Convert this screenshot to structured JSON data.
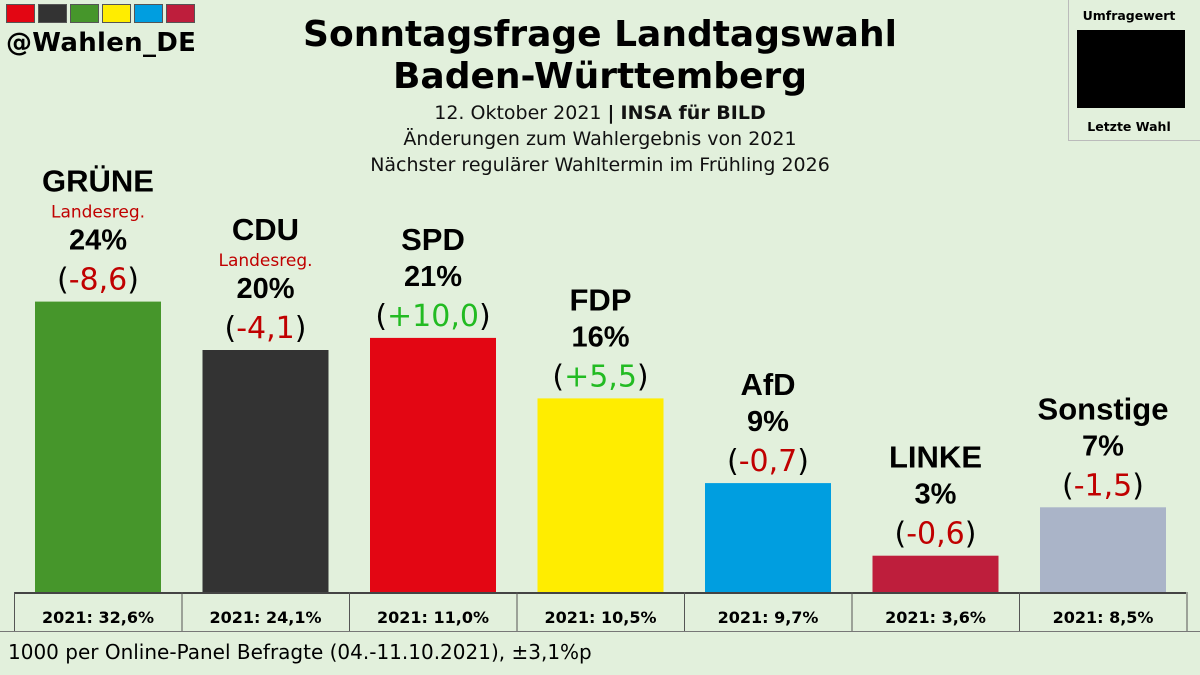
{
  "header": {
    "handle": "@Wahlen_DE",
    "title_line1": "Sonntagsfrage Landtagswahl",
    "title_line2": "Baden-Württemberg",
    "date": "12. Oktober 2021",
    "separator": "|",
    "pollster": "INSA für BILD",
    "changes_note": "Änderungen zum Wahlergebnis von 2021",
    "next_election": "Nächster regulärer Wahltermin im Frühling 2026",
    "brand_colors": [
      "#e30613",
      "#333333",
      "#46962b",
      "#ffed00",
      "#009ee0",
      "#be1e3c"
    ]
  },
  "legend": {
    "top_label": "Umfragewert",
    "bottom_label": "Letzte Wahl"
  },
  "footer": {
    "text": "1000 per Online-Panel Befragte (04.-11.10.2021), ±3,1%p"
  },
  "chart_data": {
    "type": "bar",
    "ylim": [
      0,
      30
    ],
    "categories": [
      "GRÜNE",
      "CDU",
      "SPD",
      "FDP",
      "AfD",
      "LINKE",
      "Sonstige"
    ],
    "values": [
      24,
      20,
      21,
      16,
      9,
      3,
      7
    ],
    "value_labels": [
      "24%",
      "20%",
      "21%",
      "16%",
      "9%",
      "3%",
      "7%"
    ],
    "changes": [
      "-8,6",
      "-4,1",
      "+10,0",
      "+5,5",
      "-0,7",
      "-0,6",
      "-1,5"
    ],
    "sublabels": [
      "Landesreg.",
      "Landesreg.",
      "",
      "",
      "",
      "",
      ""
    ],
    "previous_labels": [
      "2021: 32,6%",
      "2021: 24,1%",
      "2021: 11,0%",
      "2021: 10,5%",
      "2021: 9,7%",
      "2021: 3,6%",
      "2021: 8,5%"
    ],
    "colors": [
      "#46962b",
      "#333333",
      "#e30613",
      "#ffed00",
      "#009ee0",
      "#be1e3c",
      "#aab4c8"
    ],
    "negative_color": "#c00000",
    "positive_color": "#22bb22"
  }
}
